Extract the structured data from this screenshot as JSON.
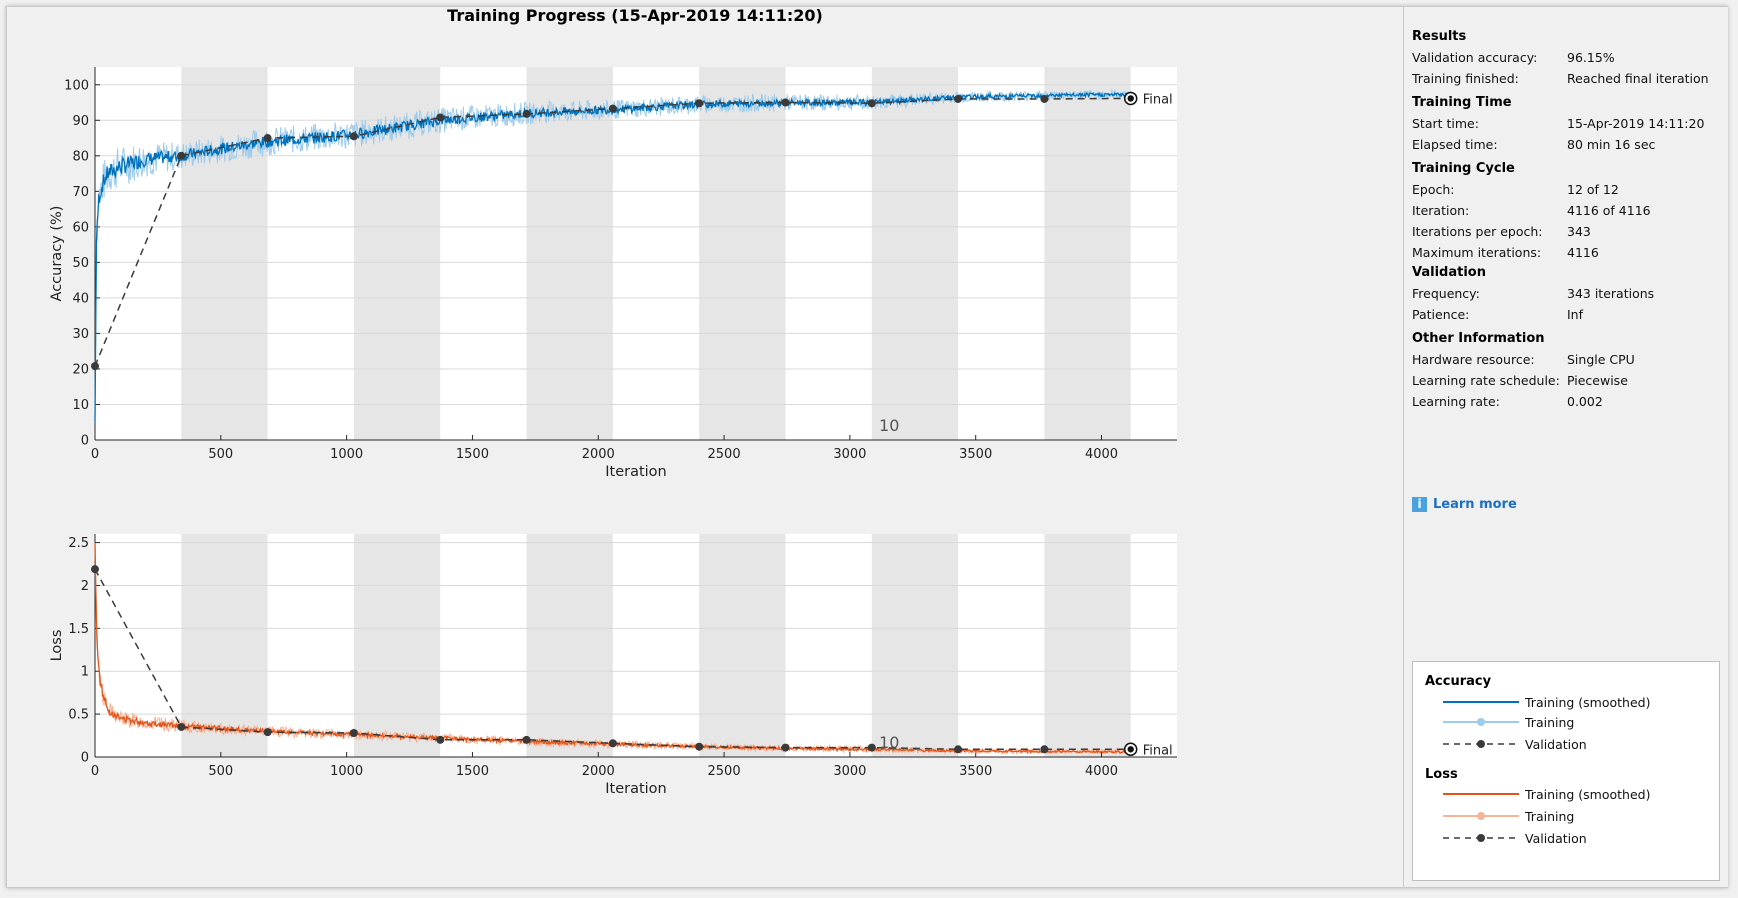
{
  "window": {
    "title": "Training Progress (15-Apr-2019 14:11:20)"
  },
  "colors": {
    "accuracy_smoothed": "#0072bd",
    "accuracy_raw": "#9ccbec",
    "loss_smoothed": "#e2561a",
    "loss_raw": "#f4b59a",
    "validation": "#3a3a3a",
    "epoch_shade": "#e6e6e6"
  },
  "chart_data": [
    {
      "type": "line",
      "name": "accuracy",
      "ylabel": "Accuracy (%)",
      "xlabel": "Iteration",
      "xlim": [
        0,
        4300
      ],
      "ylim": [
        0,
        105
      ],
      "xticks": [
        0,
        500,
        1000,
        1500,
        2000,
        2500,
        3000,
        3500,
        4000
      ],
      "yticks": [
        0,
        10,
        20,
        30,
        40,
        50,
        60,
        70,
        80,
        90,
        100
      ],
      "iterations_per_epoch": 343,
      "total_iterations": 4116,
      "epoch_annotation": {
        "text": "10",
        "iteration": 3100
      },
      "final_label": "Final",
      "smoothed_curve": {
        "x": [
          0,
          5,
          15,
          30,
          50,
          100,
          200,
          343,
          500,
          686,
          1029,
          1372,
          1715,
          2058,
          2401,
          2744,
          3087,
          3430,
          3773,
          4116
        ],
        "y": [
          5,
          55,
          68,
          72,
          75,
          77,
          79,
          80,
          82,
          84,
          86,
          90,
          92,
          93,
          94.5,
          95,
          95,
          96.5,
          97,
          97.3
        ],
        "noise": [
          0,
          2,
          3,
          3,
          3,
          3,
          2.5,
          2,
          2,
          2,
          2,
          1.8,
          1.6,
          1.4,
          1.3,
          1.2,
          1.1,
          0.8,
          0.7,
          0.6
        ]
      },
      "validation": {
        "x": [
          0,
          343,
          686,
          1029,
          1372,
          1715,
          2058,
          2401,
          2744,
          3087,
          3430,
          3773,
          4116
        ],
        "y": [
          20.8,
          80,
          85,
          85.5,
          90.8,
          91.8,
          93.3,
          94.8,
          95,
          94.8,
          96,
          96,
          96.15
        ]
      }
    },
    {
      "type": "line",
      "name": "loss",
      "ylabel": "Loss",
      "xlabel": "Iteration",
      "xlim": [
        0,
        4300
      ],
      "ylim": [
        0,
        2.6
      ],
      "xticks": [
        0,
        500,
        1000,
        1500,
        2000,
        2500,
        3000,
        3500,
        4000
      ],
      "yticks": [
        0,
        0.5,
        1,
        1.5,
        2,
        2.5
      ],
      "yticklabels": [
        "0",
        "0.5",
        "1",
        "1.5",
        "2",
        "2.5"
      ],
      "iterations_per_epoch": 343,
      "total_iterations": 4116,
      "epoch_annotation": {
        "text": "10",
        "iteration": 3100
      },
      "final_label": "Final",
      "smoothed_curve": {
        "x": [
          0,
          5,
          15,
          30,
          50,
          100,
          200,
          343,
          500,
          686,
          1029,
          1372,
          1715,
          2058,
          2401,
          2744,
          3087,
          3430,
          3773,
          4116
        ],
        "y": [
          2.5,
          1.6,
          1.0,
          0.75,
          0.55,
          0.45,
          0.4,
          0.36,
          0.33,
          0.3,
          0.26,
          0.22,
          0.18,
          0.15,
          0.12,
          0.1,
          0.09,
          0.07,
          0.065,
          0.06
        ],
        "noise": [
          0,
          0.1,
          0.08,
          0.06,
          0.05,
          0.05,
          0.04,
          0.04,
          0.035,
          0.03,
          0.03,
          0.03,
          0.025,
          0.025,
          0.02,
          0.02,
          0.02,
          0.015,
          0.015,
          0.015
        ]
      },
      "validation": {
        "x": [
          0,
          343,
          686,
          1029,
          1372,
          1715,
          2058,
          2401,
          2744,
          3087,
          3430,
          3773,
          4116
        ],
        "y": [
          2.19,
          0.35,
          0.29,
          0.28,
          0.2,
          0.2,
          0.16,
          0.12,
          0.11,
          0.11,
          0.09,
          0.09,
          0.09
        ]
      }
    }
  ],
  "results": {
    "heading": "Results",
    "rows": [
      {
        "key": "Validation accuracy:",
        "value": "96.15%"
      },
      {
        "key": "Training finished:",
        "value": "Reached final iteration"
      }
    ]
  },
  "training_time": {
    "heading": "Training Time",
    "rows": [
      {
        "key": "Start time:",
        "value": "15-Apr-2019 14:11:20"
      },
      {
        "key": "Elapsed time:",
        "value": "80 min 16 sec"
      }
    ]
  },
  "training_cycle": {
    "heading": "Training Cycle",
    "rows": [
      {
        "key": "Epoch:",
        "value": "12 of 12"
      },
      {
        "key": "Iteration:",
        "value": "4116 of 4116"
      },
      {
        "key": "Iterations per epoch:",
        "value": "343"
      },
      {
        "key": "Maximum iterations:",
        "value": "4116"
      }
    ]
  },
  "validation_info": {
    "heading": "Validation",
    "rows": [
      {
        "key": "Frequency:",
        "value": "343 iterations"
      },
      {
        "key": "Patience:",
        "value": "Inf"
      }
    ]
  },
  "other_info": {
    "heading": "Other Information",
    "rows": [
      {
        "key": "Hardware resource:",
        "value": "Single CPU"
      },
      {
        "key": "Learning rate schedule:",
        "value": "Piecewise"
      },
      {
        "key": "Learning rate:",
        "value": "0.002"
      }
    ]
  },
  "learn_more": {
    "icon": "info-icon",
    "glyph": "i",
    "label": "Learn more"
  },
  "legend": {
    "accuracy_heading": "Accuracy",
    "loss_heading": "Loss",
    "training_smoothed": "Training (smoothed)",
    "training": "Training",
    "validation": "Validation"
  }
}
